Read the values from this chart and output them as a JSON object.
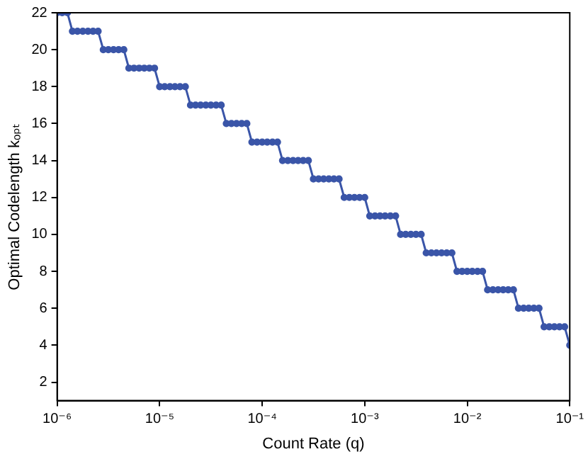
{
  "chart_data": {
    "type": "line",
    "xlabel": "Count Rate (q)",
    "ylabel": "Optimal Codelength kₒₚₜ",
    "log": "x",
    "grid": false,
    "legend": false,
    "marker": "circle",
    "line_style": "solid",
    "xlim": [
      1e-06,
      0.1
    ],
    "ylim": [
      1,
      22
    ],
    "xticks": [
      {
        "value": 1e-06,
        "label": "10⁻⁶"
      },
      {
        "value": 1e-05,
        "label": "10⁻⁵"
      },
      {
        "value": 0.0001,
        "label": "10⁻⁴"
      },
      {
        "value": 0.001,
        "label": "10⁻³"
      },
      {
        "value": 0.01,
        "label": "10⁻²"
      },
      {
        "value": 0.1,
        "label": "10⁻¹"
      }
    ],
    "yticks": [
      2,
      4,
      6,
      8,
      10,
      12,
      14,
      16,
      18,
      20,
      22
    ],
    "x": [
      1e-06,
      1.12e-06,
      1.26e-06,
      1.41e-06,
      1.58e-06,
      1.78e-06,
      2e-06,
      2.24e-06,
      2.51e-06,
      2.82e-06,
      3.16e-06,
      3.55e-06,
      3.98e-06,
      4.47e-06,
      5.01e-06,
      5.62e-06,
      6.31e-06,
      7.08e-06,
      7.94e-06,
      8.91e-06,
      1e-05,
      1.12e-05,
      1.26e-05,
      1.41e-05,
      1.58e-05,
      1.78e-05,
      2e-05,
      2.24e-05,
      2.51e-05,
      2.82e-05,
      3.16e-05,
      3.55e-05,
      3.98e-05,
      4.47e-05,
      5.01e-05,
      5.62e-05,
      6.31e-05,
      7.08e-05,
      7.94e-05,
      8.91e-05,
      0.0001,
      0.000112,
      0.000126,
      0.000141,
      0.000158,
      0.000178,
      0.0002,
      0.000224,
      0.000251,
      0.000282,
      0.000316,
      0.000355,
      0.000398,
      0.000447,
      0.000501,
      0.000562,
      0.000631,
      0.000708,
      0.000794,
      0.000891,
      0.001,
      0.00112,
      0.00126,
      0.00141,
      0.00158,
      0.00178,
      0.002,
      0.00224,
      0.00251,
      0.00282,
      0.00316,
      0.00355,
      0.00398,
      0.00447,
      0.00501,
      0.00562,
      0.00631,
      0.00708,
      0.00794,
      0.00891,
      0.01,
      0.0112,
      0.0126,
      0.0141,
      0.0158,
      0.0178,
      0.02,
      0.0224,
      0.0251,
      0.0282,
      0.0316,
      0.0355,
      0.0398,
      0.0447,
      0.0501,
      0.0562,
      0.0631,
      0.0708,
      0.0794,
      0.0891,
      0.1
    ],
    "series": [
      {
        "color": "#3a55a8",
        "values": [
          22,
          22,
          22,
          21,
          21,
          21,
          21,
          21,
          21,
          20,
          20,
          20,
          20,
          20,
          19,
          19,
          19,
          19,
          19,
          19,
          18,
          18,
          18,
          18,
          18,
          18,
          17,
          17,
          17,
          17,
          17,
          17,
          17,
          16,
          16,
          16,
          16,
          16,
          15,
          15,
          15,
          15,
          15,
          15,
          14,
          14,
          14,
          14,
          14,
          14,
          13,
          13,
          13,
          13,
          13,
          13,
          12,
          12,
          12,
          12,
          12,
          11,
          11,
          11,
          11,
          11,
          11,
          10,
          10,
          10,
          10,
          10,
          9,
          9,
          9,
          9,
          9,
          9,
          8,
          8,
          8,
          8,
          8,
          8,
          7,
          7,
          7,
          7,
          7,
          7,
          6,
          6,
          6,
          6,
          6,
          5,
          5,
          5,
          5,
          5,
          4
        ]
      }
    ]
  }
}
